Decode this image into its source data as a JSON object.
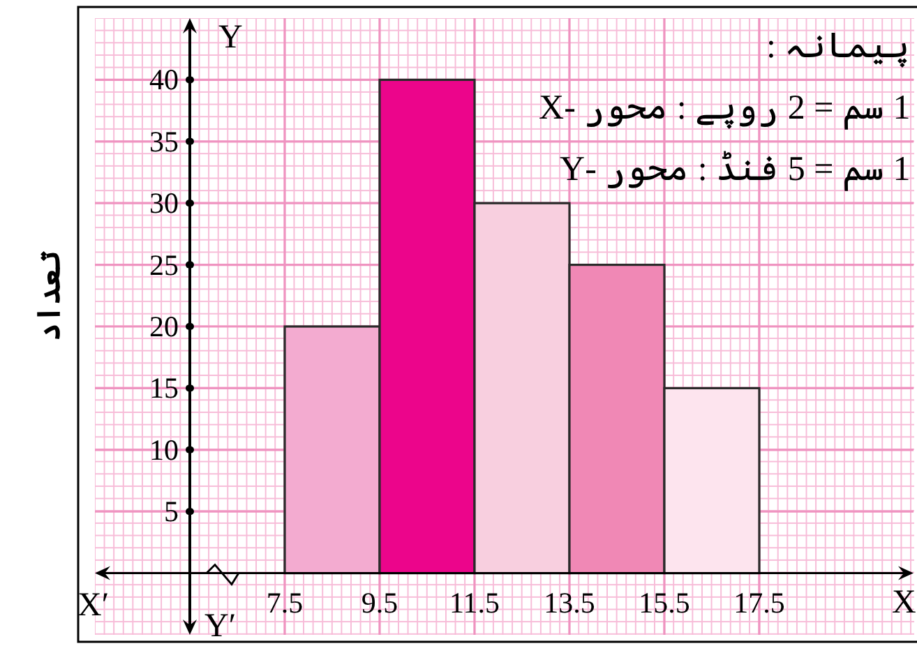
{
  "chart_data": {
    "type": "histogram",
    "bins": [
      7.5,
      9.5,
      11.5,
      13.5,
      15.5,
      17.5
    ],
    "values": [
      20,
      40,
      30,
      25,
      15
    ],
    "colors": [
      "#f3abd0",
      "#ec058b",
      "#f8cfdf",
      "#f088b5",
      "#fde4ee"
    ],
    "ylabel": "تعداد",
    "annotations": [
      "پیمانہ :",
      "1 سم = 2 روپے : محور -X",
      "1 سم = 5 فنڈ : محور -Y",
      "X′",
      "X",
      "Y",
      "Y′"
    ],
    "xlim": [
      3.5,
      20.75
    ],
    "ylim": [
      -5,
      45
    ],
    "xticks": [
      7.5,
      9.5,
      11.5,
      13.5,
      15.5,
      17.5
    ],
    "yticks": [
      5,
      10,
      15,
      20,
      25,
      30,
      35,
      40
    ],
    "grid": true
  }
}
